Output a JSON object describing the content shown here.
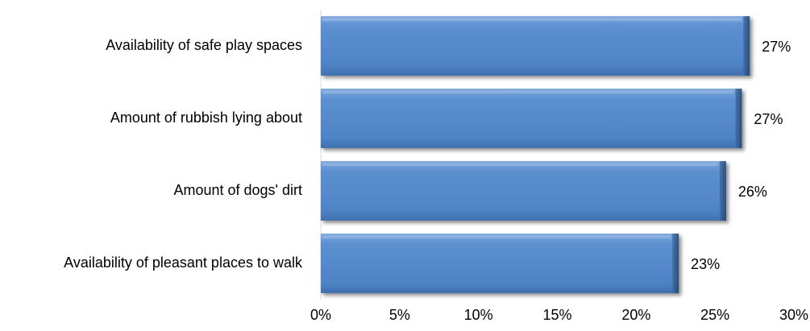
{
  "chart_data": {
    "type": "bar",
    "orientation": "horizontal",
    "categories": [
      "Availability of safe play spaces",
      "Amount of rubbish lying about",
      "Amount of dogs' dirt",
      "Availability of pleasant places to walk"
    ],
    "values": [
      27.2,
      26.7,
      25.7,
      22.7
    ],
    "data_labels": [
      "27%",
      "27%",
      "26%",
      "23%"
    ],
    "xlim": [
      0,
      30
    ],
    "x_ticks": [
      0,
      5,
      10,
      15,
      20,
      25,
      30
    ],
    "x_tick_labels": [
      "0%",
      "5%",
      "10%",
      "15%",
      "20%",
      "25%",
      "30%"
    ],
    "title": "",
    "xlabel": "",
    "ylabel": "",
    "grid": false,
    "legend": "none",
    "bar_color": "#4f81bd"
  }
}
